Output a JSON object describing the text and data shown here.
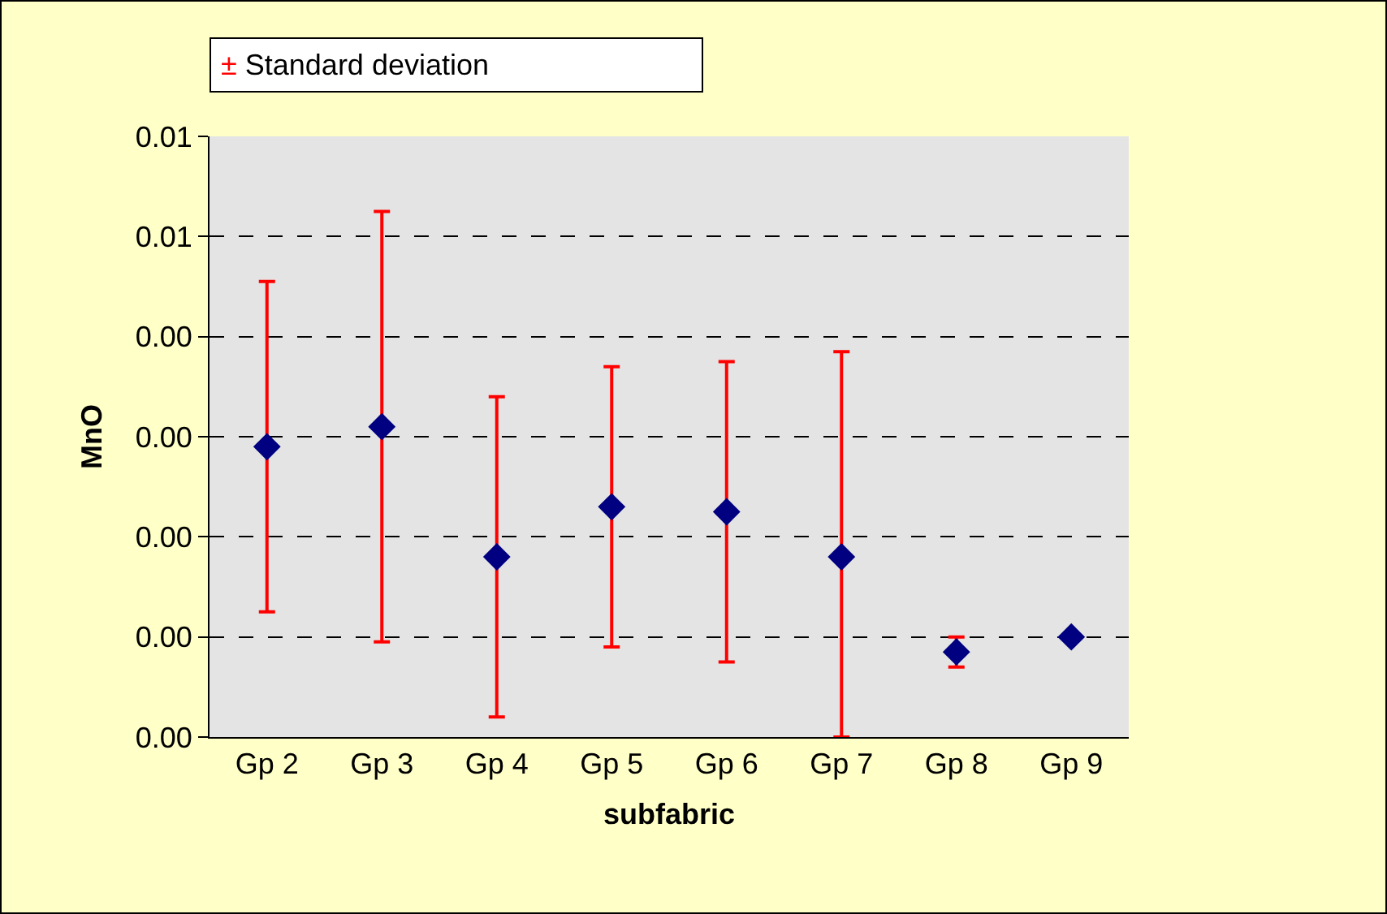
{
  "chart_data": {
    "type": "scatter",
    "xlabel": "subfabric",
    "ylabel": "MnO",
    "categories": [
      "Gp 2",
      "Gp 3",
      "Gp 4",
      "Gp 5",
      "Gp 6",
      "Gp 7",
      "Gp 8",
      "Gp 9"
    ],
    "series": [
      {
        "color": "#000080",
        "values": [
          0.0029,
          0.0031,
          0.0018,
          0.0023,
          0.00225,
          0.0018,
          0.00085,
          0.001
        ],
        "errors": [
          0.00165,
          0.00215,
          0.0016,
          0.0014,
          0.0015,
          [
            0,
            0.00385
          ],
          0.00015,
          null
        ]
      }
    ],
    "ylim": [
      0,
      0.006
    ],
    "yticks": [
      {
        "value": 0,
        "label": "0.00"
      },
      {
        "value": 0.001,
        "label": "0.00"
      },
      {
        "value": 0.002,
        "label": "0.00"
      },
      {
        "value": 0.003,
        "label": "0.00"
      },
      {
        "value": 0.004,
        "label": "0.00"
      },
      {
        "value": 0.005,
        "label": "0.01"
      },
      {
        "value": 0.006,
        "label": "0.01"
      }
    ],
    "grid": "y",
    "marker": "diamond",
    "annotations": [
      "± Standard deviation"
    ]
  }
}
